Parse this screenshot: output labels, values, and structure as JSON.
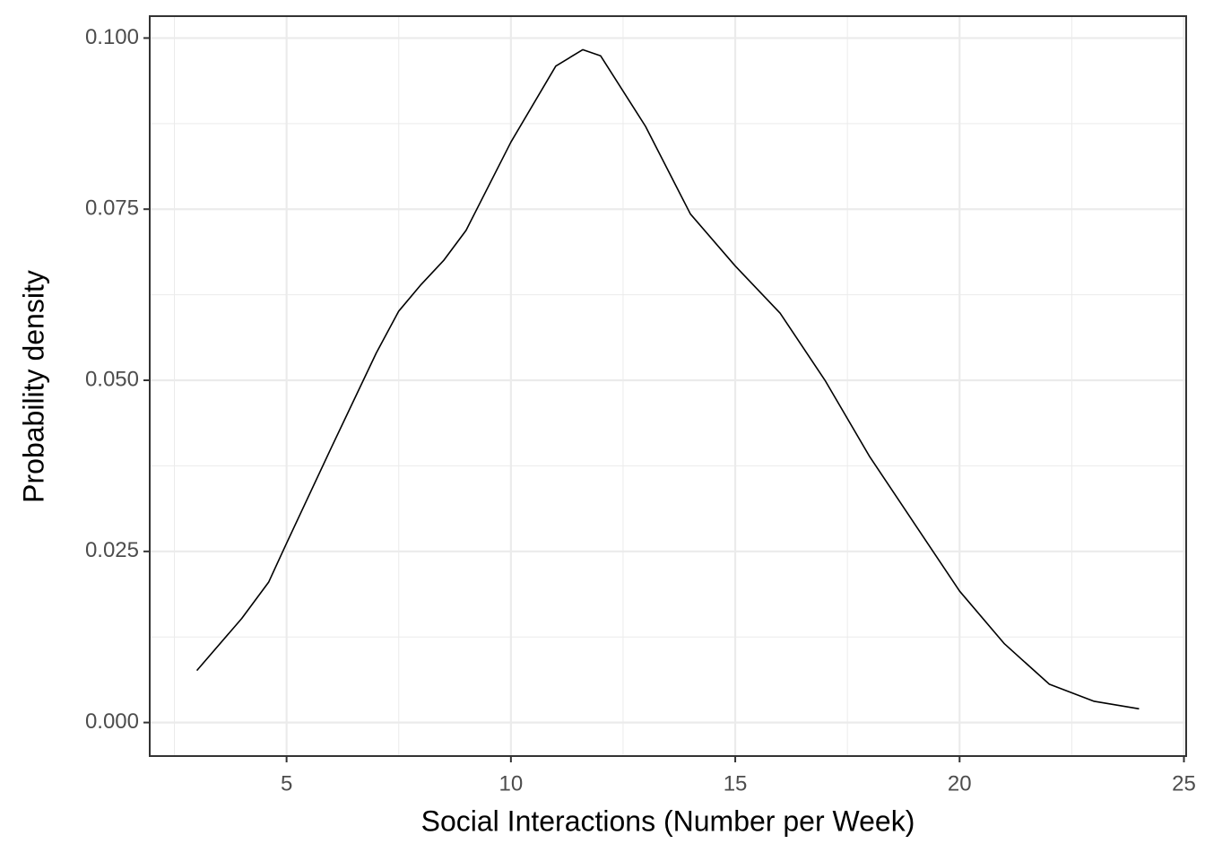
{
  "chart_data": {
    "type": "line",
    "x_label": "Social Interactions (Number per Week)",
    "y_label": "Probability density",
    "x": [
      3,
      4,
      4.6,
      5,
      6,
      7,
      7.5,
      8,
      8.5,
      9,
      10,
      11,
      11.6,
      12,
      13,
      14,
      15,
      16,
      17,
      18,
      19,
      20,
      21,
      22,
      23,
      24
    ],
    "series": [
      {
        "color": "#000000",
        "values": [
          0.0076,
          0.0152,
          0.0205,
          0.0262,
          0.0402,
          0.054,
          0.0601,
          0.064,
          0.0675,
          0.0719,
          0.0848,
          0.0959,
          0.0983,
          0.0974,
          0.0871,
          0.0743,
          0.0667,
          0.0598,
          0.05,
          0.0388,
          0.029,
          0.0192,
          0.0115,
          0.0056,
          0.0031,
          0.002
        ]
      }
    ],
    "xlim": [
      1.95,
      25.05
    ],
    "ylim": [
      -0.0049,
      0.1032
    ],
    "xticks": [
      5,
      10,
      15,
      20,
      25
    ],
    "yticks": [
      {
        "value": 0,
        "label": "0.000"
      },
      {
        "value": 0.025,
        "label": "0.025"
      },
      {
        "value": 0.05,
        "label": "0.050"
      },
      {
        "value": 0.075,
        "label": "0.075"
      },
      {
        "value": 0.1,
        "label": "0.100"
      }
    ],
    "grid": true
  }
}
